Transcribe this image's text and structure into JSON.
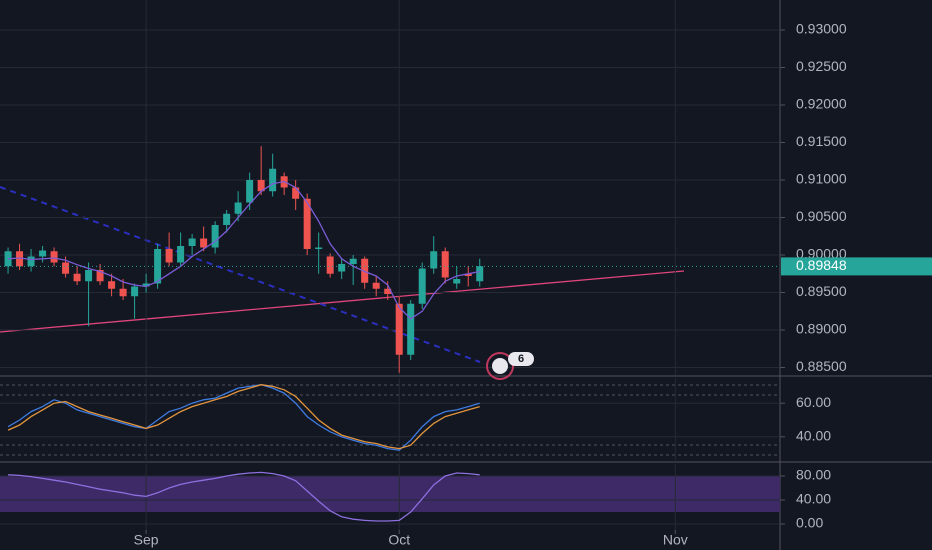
{
  "chart_data": [
    {
      "type": "candlestick",
      "up_color": "#26a69a",
      "down_color": "#ef5350",
      "grid": true,
      "ylim": [
        0.884,
        0.934
      ],
      "yticks": [
        {
          "value": 0.885,
          "label": "0.88500"
        },
        {
          "value": 0.89,
          "label": "0.89000"
        },
        {
          "value": 0.895,
          "label": "0.89500"
        },
        {
          "value": 0.9,
          "label": "0.90000"
        },
        {
          "value": 0.905,
          "label": "0.90500"
        },
        {
          "value": 0.91,
          "label": "0.91000"
        },
        {
          "value": 0.915,
          "label": "0.91500"
        },
        {
          "value": 0.92,
          "label": "0.92000"
        },
        {
          "value": 0.925,
          "label": "0.92500"
        },
        {
          "value": 0.93,
          "label": "0.93000"
        }
      ],
      "xlim": [
        -0.7,
        67.1
      ],
      "xticks": [
        {
          "value": 12,
          "label": "Sep"
        },
        {
          "value": 34,
          "label": "Oct"
        },
        {
          "value": 58,
          "label": "Nov"
        }
      ],
      "open": [
        0.8985,
        0.9005,
        0.8985,
        0.8998,
        0.9005,
        0.899,
        0.8975,
        0.8965,
        0.898,
        0.8965,
        0.8955,
        0.8945,
        0.8958,
        0.8962,
        0.9008,
        0.899,
        0.9012,
        0.9022,
        0.901,
        0.904,
        0.9055,
        0.907,
        0.91,
        0.9085,
        0.9105,
        0.909,
        0.9075,
        0.9008,
        0.8998,
        0.8978,
        0.8988,
        0.8995,
        0.8963,
        0.8955,
        0.8935,
        0.8867,
        0.8935,
        0.8982,
        0.9005,
        0.8962,
        0.8975,
        0.8965
      ],
      "high": [
        0.901,
        0.9015,
        0.9008,
        0.9012,
        0.901,
        0.8998,
        0.8985,
        0.899,
        0.8988,
        0.8975,
        0.8968,
        0.8962,
        0.8975,
        0.9015,
        0.903,
        0.903,
        0.9028,
        0.9038,
        0.9045,
        0.906,
        0.9085,
        0.911,
        0.9145,
        0.9135,
        0.911,
        0.91,
        0.9082,
        0.903,
        0.9002,
        0.8995,
        0.9,
        0.8998,
        0.8972,
        0.8965,
        0.8945,
        0.894,
        0.899,
        0.9025,
        0.901,
        0.8985,
        0.8985,
        0.8995
      ],
      "low": [
        0.8975,
        0.898,
        0.8978,
        0.899,
        0.8985,
        0.897,
        0.896,
        0.8905,
        0.896,
        0.8945,
        0.894,
        0.8915,
        0.895,
        0.8955,
        0.8985,
        0.8985,
        0.9,
        0.9005,
        0.9002,
        0.903,
        0.9045,
        0.906,
        0.908,
        0.9078,
        0.908,
        0.906,
        0.9,
        0.8975,
        0.897,
        0.8968,
        0.896,
        0.8955,
        0.8945,
        0.894,
        0.8843,
        0.886,
        0.8928,
        0.8975,
        0.8962,
        0.8955,
        0.8958,
        0.8958
      ],
      "close": [
        0.9005,
        0.8985,
        0.8998,
        0.9006,
        0.899,
        0.8975,
        0.8965,
        0.898,
        0.8965,
        0.8955,
        0.8945,
        0.8958,
        0.8962,
        0.9008,
        0.899,
        0.9012,
        0.9022,
        0.901,
        0.904,
        0.9055,
        0.907,
        0.91,
        0.9085,
        0.9115,
        0.909,
        0.9075,
        0.9008,
        0.901,
        0.8975,
        0.8988,
        0.8995,
        0.8963,
        0.8955,
        0.8948,
        0.8867,
        0.8935,
        0.8982,
        0.9005,
        0.897,
        0.8968,
        0.8972,
        0.8985
      ],
      "series": [
        {
          "color": "#7b5cd6",
          "values": [
            0.8995,
            0.8996,
            0.8994,
            0.8995,
            0.8996,
            0.8993,
            0.8987,
            0.8982,
            0.8978,
            0.8972,
            0.8964,
            0.896,
            0.8958,
            0.8965,
            0.8975,
            0.8985,
            0.8998,
            0.9008,
            0.9018,
            0.9032,
            0.905,
            0.9068,
            0.9085,
            0.9095,
            0.9098,
            0.909,
            0.907,
            0.9045,
            0.9015,
            0.8995,
            0.8985,
            0.8978,
            0.8972,
            0.896,
            0.893,
            0.8915,
            0.8925,
            0.8948,
            0.8965,
            0.8972,
            0.8975,
            0.8978
          ]
        }
      ],
      "last_price": 0.89848,
      "last_price_color": "#26a69a",
      "annotation": "6"
    },
    {
      "type": "line",
      "ylim": [
        25,
        75
      ],
      "grid": true,
      "yticks": [
        {
          "value": 40,
          "label": "40.00"
        },
        {
          "value": 60,
          "label": "60.00"
        }
      ],
      "series": [
        {
          "color": "#3f7be0",
          "values": [
            46,
            50,
            55,
            58,
            62,
            60,
            56,
            54,
            52,
            50,
            48,
            46,
            45,
            50,
            55,
            57,
            60,
            62,
            63,
            66,
            69,
            70,
            71,
            69,
            66,
            60,
            52,
            47,
            43,
            40,
            38,
            36,
            35,
            33,
            32,
            38,
            46,
            52,
            55,
            56,
            58,
            60
          ]
        },
        {
          "color": "#e3953e",
          "values": [
            44,
            47,
            52,
            56,
            60,
            61,
            58,
            55,
            53,
            51,
            49,
            47,
            45,
            47,
            51,
            55,
            58,
            60,
            62,
            64,
            67,
            69,
            71,
            70,
            68,
            64,
            57,
            50,
            45,
            41,
            39,
            37,
            36,
            34,
            33,
            35,
            42,
            48,
            52,
            54,
            56,
            58
          ]
        }
      ]
    },
    {
      "type": "line",
      "ylim": [
        -10,
        100
      ],
      "grid": true,
      "band": [
        20,
        80
      ],
      "band_color": "#3d2a66",
      "yticks": [
        {
          "value": 0,
          "label": "0.00"
        },
        {
          "value": 40,
          "label": "40.00"
        },
        {
          "value": 80,
          "label": "80.00"
        }
      ],
      "series": [
        {
          "color": "#8e6fe0",
          "values": [
            82,
            81,
            79,
            76,
            73,
            70,
            66,
            62,
            58,
            55,
            52,
            48,
            46,
            52,
            60,
            66,
            70,
            73,
            76,
            80,
            83,
            85,
            86,
            84,
            80,
            72,
            55,
            38,
            22,
            12,
            8,
            6,
            5,
            5,
            6,
            20,
            42,
            65,
            80,
            85,
            84,
            82
          ]
        }
      ]
    }
  ]
}
